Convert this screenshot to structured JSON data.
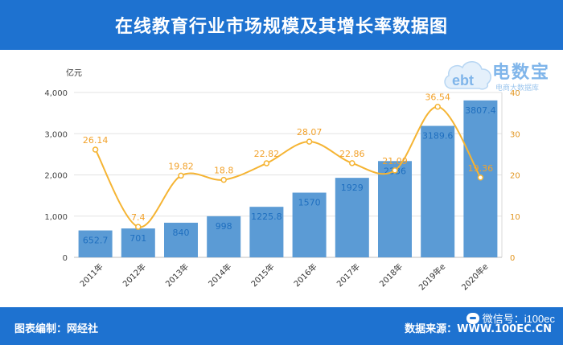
{
  "header": {
    "title": "在线教育行业市场规模及其增长率数据图"
  },
  "logo": {
    "brand": "电数宝",
    "sub": "电商大数据库",
    "mark": "ebt"
  },
  "footer": {
    "editor": "图表编制：网经社",
    "source": "数据来源：WWW.100EC.CN",
    "wechat": "微信号：i100ec"
  },
  "colors": {
    "header_bg": "#1e72d0",
    "bar": "#5b9bd5",
    "line": "#f5b433"
  },
  "chart_data": {
    "type": "bar",
    "title": "在线教育行业市场规模及其增长率数据图",
    "unit_left": "亿元",
    "categories": [
      "2011年",
      "2012年",
      "2013年",
      "2014年",
      "2015年",
      "2016年",
      "2017年",
      "2018年",
      "2019年e",
      "2020年e"
    ],
    "series": [
      {
        "type": "bar",
        "axis": "left",
        "values": [
          652.7,
          701,
          840,
          998,
          1225.8,
          1570,
          1929,
          2336,
          3189.6,
          3807.4
        ],
        "labels": [
          "652.7",
          "701",
          "840",
          "998",
          "1225.8",
          "1570",
          "1929",
          "2336",
          "3189.6",
          "3807.4"
        ]
      },
      {
        "type": "line",
        "axis": "right",
        "values": [
          26.14,
          7.4,
          19.82,
          18.8,
          22.82,
          28.07,
          22.86,
          21.09,
          36.54,
          19.36
        ],
        "labels": [
          "26.14",
          "7.4",
          "19.82",
          "18.8",
          "22.82",
          "28.07",
          "22.86",
          "21.09",
          "36.54",
          "19.36"
        ]
      }
    ],
    "ylim_left": [
      0,
      4000
    ],
    "yticks_left": [
      "0",
      "1,000",
      "2,000",
      "3,000",
      "4,000"
    ],
    "ylim_right": [
      0,
      40
    ],
    "yticks_right": [
      "0",
      "10",
      "20",
      "30",
      "40"
    ],
    "grid": true,
    "legend": "none"
  }
}
